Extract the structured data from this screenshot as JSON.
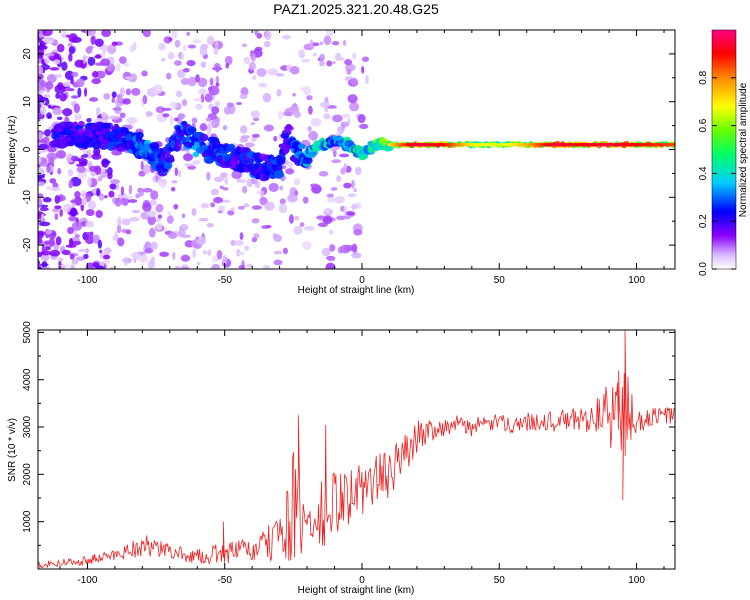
{
  "title": "PAZ1.2025.321.20.48.G25",
  "chart_data": [
    {
      "type": "heatmap",
      "xlabel": "Height of straight line (km)",
      "ylabel": "Frequency (Hz)",
      "xlim": [
        -118,
        114
      ],
      "ylim": [
        -25,
        25
      ],
      "xticks": [
        -100,
        -50,
        0,
        50,
        100
      ],
      "yticks": [
        -20,
        -10,
        0,
        10,
        20
      ],
      "colorbar": {
        "label": "Normalized spectral amplitude",
        "range": [
          0,
          1
        ],
        "ticks": [
          0.0,
          0.2,
          0.4,
          0.6,
          0.8
        ],
        "tick_labels": [
          "0.0",
          "0.2",
          "0.4",
          "0.6",
          "0.8"
        ],
        "colors": [
          "#ffffff",
          "#d9b8ff",
          "#8a00ff",
          "#0000ff",
          "#00ccff",
          "#00ff66",
          "#66ff00",
          "#ffff00",
          "#ff8800",
          "#ff0000",
          "#ff0080"
        ]
      },
      "ridge": {
        "x": [
          -95,
          -85,
          -78,
          -72,
          -66,
          -60,
          -55,
          -50,
          -45,
          -40,
          -35,
          -30,
          -27,
          -24,
          -20,
          -15,
          -10,
          -5,
          0,
          5,
          10,
          15,
          20,
          30,
          40,
          50,
          60,
          70,
          80,
          90,
          100,
          114
        ],
        "y": [
          3,
          2,
          0,
          -3,
          4,
          1,
          0,
          -1,
          -2,
          -3,
          -4,
          -3,
          3,
          -1,
          -1,
          1,
          2,
          1,
          -1,
          1,
          1,
          1,
          1,
          1,
          1,
          1,
          1,
          1,
          1,
          1,
          1,
          1
        ],
        "amplitude": [
          0.25,
          0.3,
          0.35,
          0.3,
          0.3,
          0.35,
          0.3,
          0.3,
          0.25,
          0.3,
          0.25,
          0.3,
          0.2,
          0.35,
          0.4,
          0.45,
          0.4,
          0.45,
          0.5,
          0.55,
          0.65,
          0.8,
          0.9,
          0.85,
          0.65,
          0.6,
          0.7,
          0.9,
          0.85,
          0.9,
          0.85,
          0.8
        ]
      }
    },
    {
      "type": "line",
      "xlabel": "Height of straight line (km)",
      "ylabel": "SNR (10 * v/v)",
      "xlim": [
        -118,
        114
      ],
      "ylim": [
        0,
        5050
      ],
      "xticks": [
        -100,
        -50,
        0,
        50,
        100
      ],
      "yticks": [
        1000,
        2000,
        3000,
        4000,
        5000
      ],
      "series": [
        {
          "name": "SNR",
          "color": "#ee2222",
          "x": [
            -118,
            -110,
            -100,
            -90,
            -85,
            -80,
            -75,
            -70,
            -65,
            -60,
            -55,
            -50,
            -45,
            -40,
            -35,
            -30,
            -25,
            -22,
            -20,
            -15,
            -10,
            -5,
            0,
            5,
            10,
            15,
            20,
            25,
            30,
            35,
            40,
            45,
            50,
            55,
            60,
            65,
            70,
            75,
            80,
            85,
            90,
            95,
            100,
            105,
            110,
            114
          ],
          "values": [
            100,
            130,
            180,
            300,
            400,
            500,
            430,
            380,
            300,
            260,
            300,
            330,
            400,
            380,
            500,
            700,
            1300,
            1000,
            900,
            1000,
            1400,
            1500,
            1700,
            1900,
            2000,
            2400,
            2800,
            2950,
            3000,
            3050,
            3000,
            3050,
            3100,
            3050,
            3100,
            3150,
            3100,
            3150,
            3150,
            3250,
            3250,
            3300,
            3100,
            3200,
            3250,
            3250
          ],
          "noise": [
            80,
            90,
            100,
            130,
            180,
            250,
            200,
            160,
            150,
            150,
            200,
            220,
            250,
            250,
            350,
            550,
            1200,
            1000,
            800,
            900,
            700,
            600,
            600,
            550,
            500,
            450,
            350,
            250,
            200,
            200,
            200,
            180,
            180,
            180,
            200,
            200,
            220,
            250,
            280,
            350,
            700,
            1300,
            250,
            200,
            200,
            200
          ],
          "spikes": [
            {
              "x": -50.5,
              "y": 1000
            },
            {
              "x": -23.2,
              "y": 3250
            },
            {
              "x": -13.2,
              "y": 3050
            },
            {
              "x": 93.5,
              "y": 4200
            },
            {
              "x": 95.8,
              "y": 5050
            },
            {
              "x": 95.0,
              "y": 1450
            }
          ]
        }
      ]
    }
  ]
}
